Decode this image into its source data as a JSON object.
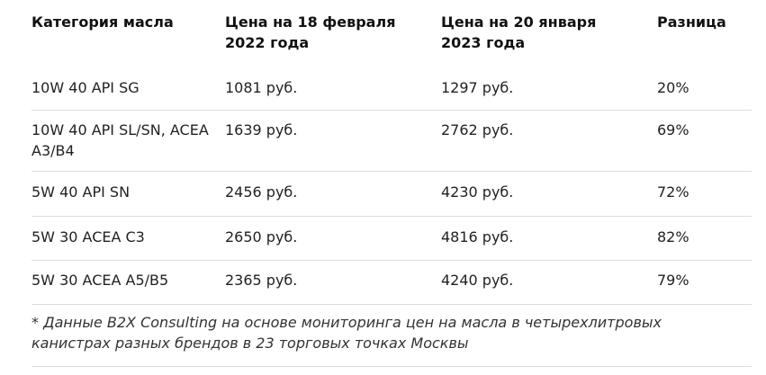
{
  "table": {
    "header": [
      "Категория масла",
      "Цена на 18 февраля 2022 года",
      "Цена на 20 января 2023 года",
      "Разница"
    ],
    "rows": [
      [
        "10W 40 API SG",
        "1081 руб.",
        "1297 руб.",
        "20%"
      ],
      [
        "10W 40 API SL/SN, ACEA A3/B4",
        "1639 руб.",
        "2762 руб.",
        "69%"
      ],
      [
        "5W 40 API SN",
        "2456 руб.",
        "4230 руб.",
        "72%"
      ],
      [
        "5W 30 ACEA C3",
        "2650 руб.",
        "4816 руб.",
        "82%"
      ],
      [
        "5W 30 ACEA A5/B5",
        "2365 руб.",
        "4240 руб.",
        "79%"
      ]
    ]
  },
  "footnote": "* Данные B2X Consulting на основе мониторинга цен на масла в четырехлитровых канистрах разных брендов в 23 торговых точках Москвы"
}
